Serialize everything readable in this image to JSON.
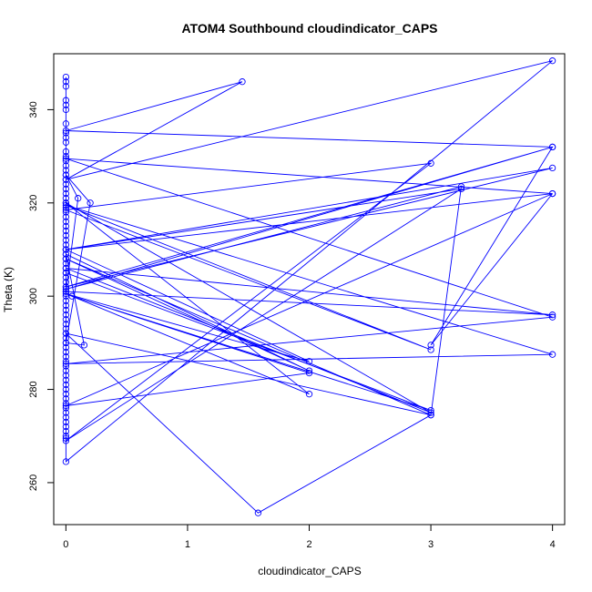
{
  "chart_data": {
    "type": "line",
    "title": "ATOM4 Southbound cloudindicator_CAPS",
    "xlabel": "cloudindicator_CAPS",
    "ylabel": "Theta (K)",
    "xlim": [
      -0.1,
      4.1
    ],
    "ylim": [
      251,
      352
    ],
    "x_ticks": [
      0,
      1,
      2,
      3,
      4
    ],
    "y_ticks": [
      260,
      280,
      300,
      320,
      340
    ],
    "grid": false,
    "legend": "none",
    "color": "#0000ff",
    "marker": "open-circle",
    "series": [
      {
        "x": [
          0,
          0,
          0,
          0,
          0,
          0,
          0,
          0,
          0,
          0,
          0,
          0,
          0,
          0,
          0,
          0,
          0,
          0,
          0,
          0,
          0,
          0,
          0,
          0,
          0,
          0,
          0,
          0,
          0,
          0,
          0,
          0,
          0,
          0,
          0,
          0,
          0,
          0,
          0,
          0,
          0,
          0,
          0,
          0,
          0,
          0,
          0,
          0,
          0,
          0,
          0,
          0,
          0,
          0,
          0,
          0,
          0,
          0,
          0,
          0,
          0,
          0,
          0,
          0,
          0,
          0,
          0,
          0,
          0,
          0,
          0,
          0,
          0,
          0,
          4,
          0,
          1.45,
          0,
          4,
          0,
          4,
          0,
          4,
          0,
          4,
          0,
          4,
          0,
          3,
          0,
          3,
          0,
          3.25,
          0,
          2,
          0,
          2,
          0,
          3,
          0,
          4,
          0,
          0.1,
          0,
          0.2,
          0,
          0.15,
          0,
          2,
          0,
          3,
          0,
          1.58,
          3,
          3.25,
          0,
          4,
          3,
          4,
          0,
          2,
          0.05,
          3,
          0
        ],
        "y": [
          347,
          346,
          345,
          342,
          341,
          340,
          337,
          335,
          334,
          333,
          331,
          330,
          329,
          328,
          327,
          326,
          325,
          324,
          323,
          322,
          321,
          320,
          319,
          318,
          317,
          316,
          315,
          314,
          313,
          312,
          311,
          310,
          309,
          308,
          307,
          306,
          305,
          304,
          303,
          302,
          301,
          300,
          299,
          298,
          297,
          296,
          295,
          294,
          293,
          292,
          291,
          290,
          289,
          288,
          287,
          286,
          285,
          284,
          283,
          282,
          281,
          280,
          279,
          278,
          277,
          276,
          275,
          274,
          273,
          272,
          271,
          270,
          269.5,
          264.5,
          350.5,
          325,
          346,
          335.5,
          332,
          302,
          327.5,
          310,
          322,
          329.5,
          295.5,
          285.5,
          287.5,
          319.5,
          288.5,
          318.5,
          328.5,
          269,
          323,
          310,
          286,
          300.5,
          279,
          320,
          275,
          306,
          296,
          301,
          321,
          326,
          320,
          290,
          289.5,
          309,
          284,
          308,
          274.5,
          292,
          253.5,
          274.5,
          323.5,
          301.5,
          332,
          289.5,
          322,
          276.5,
          283.5,
          300,
          275.5,
          305
        ]
      }
    ]
  }
}
